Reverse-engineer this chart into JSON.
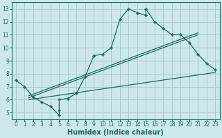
{
  "title": "",
  "xlabel": "Humidex (Indice chaleur)",
  "xlim": [
    -0.5,
    23.5
  ],
  "ylim": [
    4.5,
    13.5
  ],
  "xticks": [
    0,
    1,
    2,
    3,
    4,
    5,
    6,
    7,
    8,
    9,
    10,
    11,
    12,
    13,
    14,
    15,
    16,
    17,
    18,
    19,
    20,
    21,
    22,
    23
  ],
  "yticks": [
    5,
    6,
    7,
    8,
    9,
    10,
    11,
    12,
    13
  ],
  "bg_color": "#cce8e8",
  "grid_color": "#aacccc",
  "line_color": "#1a6b5a",
  "main_line_x": [
    0,
    1,
    2,
    3,
    4,
    5,
    5,
    5,
    6,
    7,
    8,
    9,
    9,
    10,
    11,
    12,
    13,
    14,
    15,
    15,
    16,
    17,
    18,
    19,
    20,
    21,
    22,
    23
  ],
  "main_line_y": [
    7.5,
    7.0,
    6.2,
    5.8,
    5.5,
    4.8,
    5.2,
    6.0,
    6.1,
    6.5,
    7.8,
    9.4,
    9.4,
    9.5,
    10.0,
    12.2,
    13.0,
    12.7,
    12.5,
    13.0,
    12.0,
    11.5,
    11.0,
    11.0,
    10.4,
    9.5,
    8.8,
    8.3
  ],
  "line1_x": [
    1.5,
    21
  ],
  "line1_y": [
    6.15,
    11.0
  ],
  "line2_x": [
    1.5,
    21
  ],
  "line2_y": [
    6.3,
    11.15
  ],
  "line3_x": [
    1.5,
    23
  ],
  "line3_y": [
    6.0,
    8.1
  ],
  "marker_x": [
    0,
    1,
    2,
    3,
    4,
    5,
    6,
    7,
    8,
    9,
    10,
    11,
    12,
    13,
    14,
    15,
    15,
    16,
    17,
    18,
    19,
    20,
    21,
    22,
    23
  ],
  "marker_y": [
    7.5,
    7.0,
    6.2,
    5.8,
    5.5,
    4.8,
    6.1,
    6.5,
    7.8,
    9.4,
    9.5,
    10.0,
    12.2,
    13.0,
    12.7,
    12.5,
    13.0,
    12.0,
    11.5,
    11.0,
    11.0,
    10.4,
    9.5,
    8.8,
    8.3
  ],
  "xlabel_fontsize": 7,
  "tick_fontsize": 5.5
}
